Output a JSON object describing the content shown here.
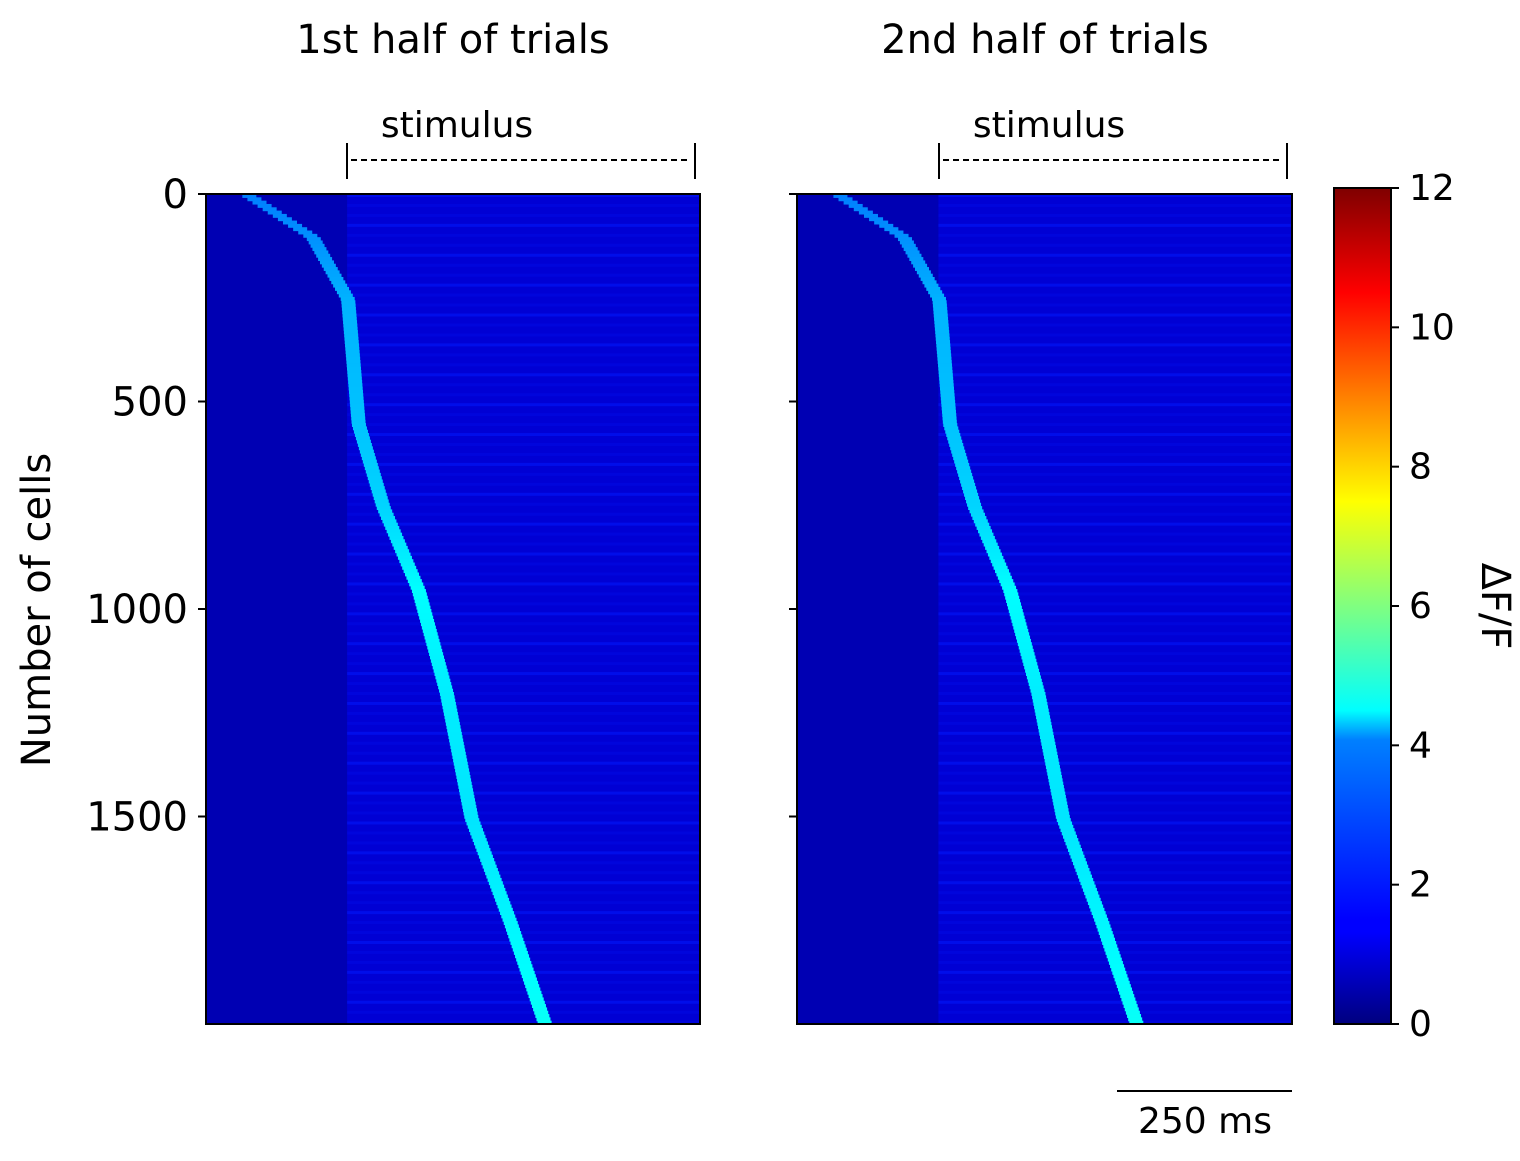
{
  "chart_data": [
    {
      "type": "heatmap",
      "title": "1st half of trials",
      "annotation": "stimulus",
      "ylabel": "Number of cells",
      "xlabel": "",
      "ylim": [
        0,
        2000
      ],
      "y_ticks": [
        0,
        500,
        1000,
        1500
      ],
      "y_tick_labels": [
        "0",
        "500",
        "1000",
        "1500"
      ],
      "x_range_ms": [
        0,
        700
      ],
      "stimulus_window_ms": [
        200,
        700
      ],
      "background_dff": 0.6,
      "peak_trace": [
        {
          "cell": 0,
          "time_ms": 60,
          "dff": 3.0
        },
        {
          "cell": 100,
          "time_ms": 150,
          "dff": 3.2
        },
        {
          "cell": 250,
          "time_ms": 200,
          "dff": 3.6
        },
        {
          "cell": 550,
          "time_ms": 215,
          "dff": 3.8
        },
        {
          "cell": 750,
          "time_ms": 250,
          "dff": 4.0
        },
        {
          "cell": 950,
          "time_ms": 300,
          "dff": 4.5
        },
        {
          "cell": 1200,
          "time_ms": 340,
          "dff": 4.3
        },
        {
          "cell": 1500,
          "time_ms": 375,
          "dff": 4.2
        },
        {
          "cell": 1750,
          "time_ms": 430,
          "dff": 4.4
        },
        {
          "cell": 2000,
          "time_ms": 480,
          "dff": 4.6
        }
      ]
    },
    {
      "type": "heatmap",
      "title": "2nd half of trials",
      "annotation": "stimulus",
      "ylim": [
        0,
        2000
      ],
      "x_range_ms": [
        0,
        700
      ],
      "stimulus_window_ms": [
        200,
        700
      ],
      "background_dff": 0.6,
      "peak_trace": [
        {
          "cell": 0,
          "time_ms": 60,
          "dff": 3.0
        },
        {
          "cell": 100,
          "time_ms": 150,
          "dff": 3.2
        },
        {
          "cell": 250,
          "time_ms": 200,
          "dff": 3.6
        },
        {
          "cell": 550,
          "time_ms": 215,
          "dff": 3.8
        },
        {
          "cell": 750,
          "time_ms": 250,
          "dff": 4.0
        },
        {
          "cell": 950,
          "time_ms": 300,
          "dff": 4.5
        },
        {
          "cell": 1200,
          "time_ms": 340,
          "dff": 4.3
        },
        {
          "cell": 1500,
          "time_ms": 375,
          "dff": 4.2
        },
        {
          "cell": 1750,
          "time_ms": 430,
          "dff": 4.4
        },
        {
          "cell": 2000,
          "time_ms": 480,
          "dff": 4.6
        }
      ]
    }
  ],
  "colorbar": {
    "label": "ΔF/F",
    "range": [
      0,
      12
    ],
    "ticks": [
      0,
      2,
      4,
      6,
      8,
      10,
      12
    ],
    "tick_labels": [
      "0",
      "2",
      "4",
      "6",
      "8",
      "10",
      "12"
    ],
    "colormap": "jet"
  },
  "scalebar": {
    "value_ms": 250,
    "label": "250 ms"
  },
  "colors": {
    "jet_dark_blue": "#00007f",
    "jet_blue": "#0000ff",
    "jet_cyan": "#00ffff",
    "jet_yellow": "#ffff00",
    "jet_red": "#ff0000",
    "jet_dark_red": "#7f0000"
  }
}
